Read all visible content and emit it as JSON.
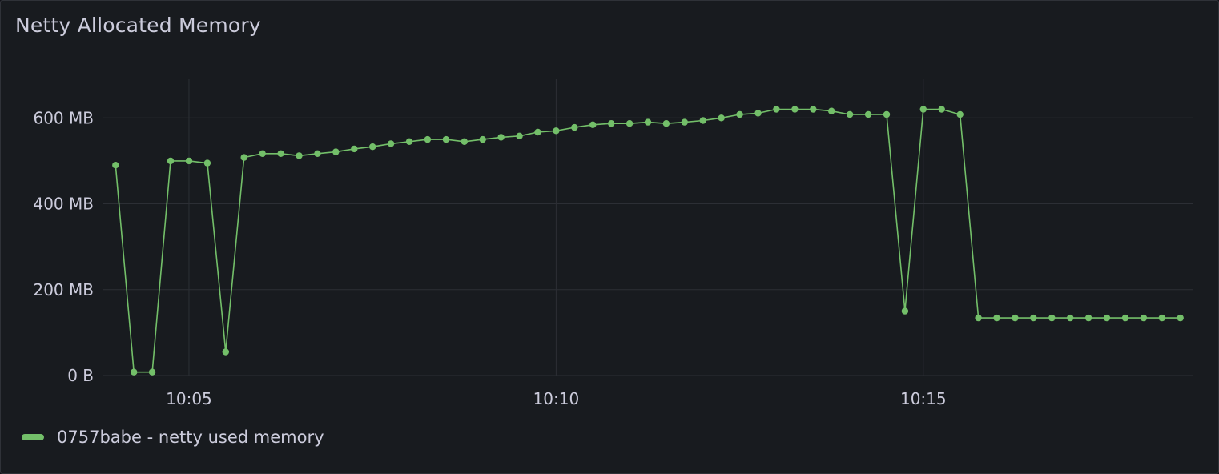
{
  "panel": {
    "title": "Netty Allocated Memory"
  },
  "colors": {
    "background": "#181b1f",
    "grid": "#2c2f35",
    "text": "#ccccdc",
    "series": "#73bf69"
  },
  "chart_data": {
    "type": "line",
    "title": "Netty Allocated Memory",
    "xlabel": "",
    "ylabel": "",
    "y_unit": "MB",
    "ylim": [
      0,
      690
    ],
    "y_ticks": [
      {
        "value": 0,
        "label": "0 B"
      },
      {
        "value": 200,
        "label": "200 MB"
      },
      {
        "value": 400,
        "label": "400 MB"
      },
      {
        "value": 600,
        "label": "600 MB"
      }
    ],
    "x_range": [
      "10:03:50",
      "10:18:40"
    ],
    "x_ticks": [
      {
        "value": "10:05:00",
        "label": "10:05"
      },
      {
        "value": "10:10:00",
        "label": "10:10"
      },
      {
        "value": "10:15:00",
        "label": "10:15"
      }
    ],
    "grid": true,
    "legend_placement": "bottom-left",
    "series": [
      {
        "name": "0757babe - netty used memory",
        "color": "#73bf69",
        "x": [
          "10:04:00",
          "10:04:15",
          "10:04:30",
          "10:04:45",
          "10:05:00",
          "10:05:15",
          "10:05:30",
          "10:05:45",
          "10:06:00",
          "10:06:15",
          "10:06:30",
          "10:06:45",
          "10:07:00",
          "10:07:15",
          "10:07:30",
          "10:07:45",
          "10:08:00",
          "10:08:15",
          "10:08:30",
          "10:08:45",
          "10:09:00",
          "10:09:15",
          "10:09:30",
          "10:09:45",
          "10:10:00",
          "10:10:15",
          "10:10:30",
          "10:10:45",
          "10:11:00",
          "10:11:15",
          "10:11:30",
          "10:11:45",
          "10:12:00",
          "10:12:15",
          "10:12:30",
          "10:12:45",
          "10:13:00",
          "10:13:15",
          "10:13:30",
          "10:13:45",
          "10:14:00",
          "10:14:15",
          "10:14:30",
          "10:14:45",
          "10:15:00",
          "10:15:15",
          "10:15:30",
          "10:15:45",
          "10:16:00",
          "10:16:15",
          "10:16:30",
          "10:16:45",
          "10:17:00",
          "10:17:15",
          "10:17:30",
          "10:17:45",
          "10:18:00",
          "10:18:15",
          "10:18:30"
        ],
        "values": [
          490,
          8,
          8,
          500,
          500,
          495,
          55,
          508,
          517,
          517,
          512,
          517,
          521,
          528,
          533,
          540,
          545,
          550,
          550,
          545,
          550,
          555,
          558,
          567,
          570,
          578,
          584,
          587,
          587,
          590,
          587,
          590,
          594,
          600,
          608,
          611,
          620,
          620,
          620,
          616,
          608,
          608,
          608,
          150,
          620,
          620,
          608,
          134,
          134,
          134,
          134,
          134,
          134,
          134,
          134,
          134,
          134,
          134,
          134
        ]
      }
    ]
  }
}
